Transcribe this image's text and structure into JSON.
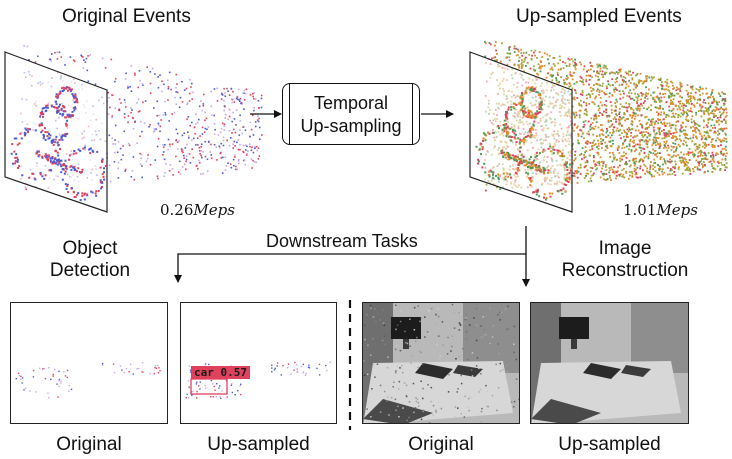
{
  "top": {
    "original_title": "Original Events",
    "upsampled_title": "Up-sampled Events",
    "process_line1": "Temporal",
    "process_line2": "Up-sampling",
    "original_rate_value": "0.26",
    "original_rate_unit": "Meps",
    "upsampled_rate_value": "1.01",
    "upsampled_rate_unit": "Meps"
  },
  "middle": {
    "downstream_label": "Downstream Tasks",
    "task_left_line1": "Object",
    "task_left_line2": "Detection",
    "task_right_line1": "Image",
    "task_right_line2": "Reconstruction"
  },
  "bottom": {
    "captions": [
      "Original",
      "Up-sampled",
      "Original",
      "Up-sampled"
    ],
    "detection_label": "car 0.57"
  },
  "colors": {
    "event_red": "#e0415d",
    "event_blue": "#4a5bd6",
    "event_orange": "#e58a2a",
    "event_olive": "#a6a83a",
    "event_green": "#4d9a57"
  }
}
